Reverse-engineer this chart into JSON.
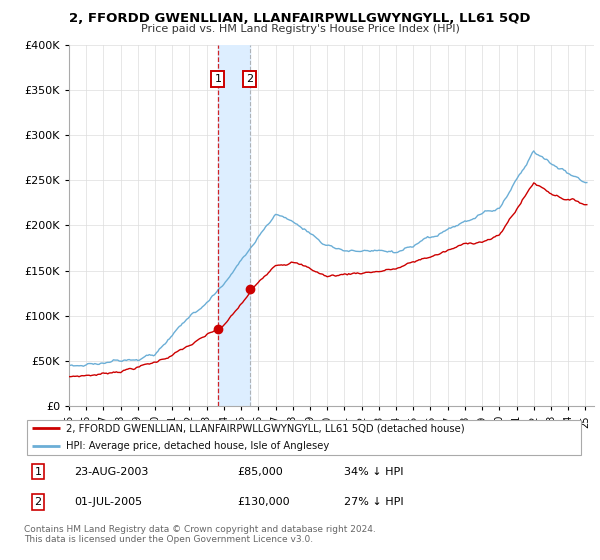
{
  "title": "2, FFORDD GWENLLIAN, LLANFAIRPWLLGWYNGYLL, LL61 5QD",
  "subtitle": "Price paid vs. HM Land Registry's House Price Index (HPI)",
  "ylim": [
    0,
    400000
  ],
  "yticks": [
    0,
    50000,
    100000,
    150000,
    200000,
    250000,
    300000,
    350000,
    400000
  ],
  "ytick_labels": [
    "£0",
    "£50K",
    "£100K",
    "£150K",
    "£200K",
    "£250K",
    "£300K",
    "£350K",
    "£400K"
  ],
  "xlim_start": 1995,
  "xlim_end": 2025.5,
  "sale1_date_num": 2003.648,
  "sale1_price": 85000,
  "sale2_date_num": 2005.496,
  "sale2_price": 130000,
  "legend_line1": "2, FFORDD GWENLLIAN, LLANFAIRPWLLGWYNGYLL, LL61 5QD (detached house)",
  "legend_line2": "HPI: Average price, detached house, Isle of Anglesey",
  "table_row1": [
    "1",
    "23-AUG-2003",
    "£85,000",
    "34% ↓ HPI"
  ],
  "table_row2": [
    "2",
    "01-JUL-2005",
    "£130,000",
    "27% ↓ HPI"
  ],
  "footer": "Contains HM Land Registry data © Crown copyright and database right 2024.\nThis data is licensed under the Open Government Licence v3.0.",
  "red_color": "#cc0000",
  "blue_color": "#6baed6",
  "shade_color": "#ddeeff",
  "grid_color": "#dddddd"
}
